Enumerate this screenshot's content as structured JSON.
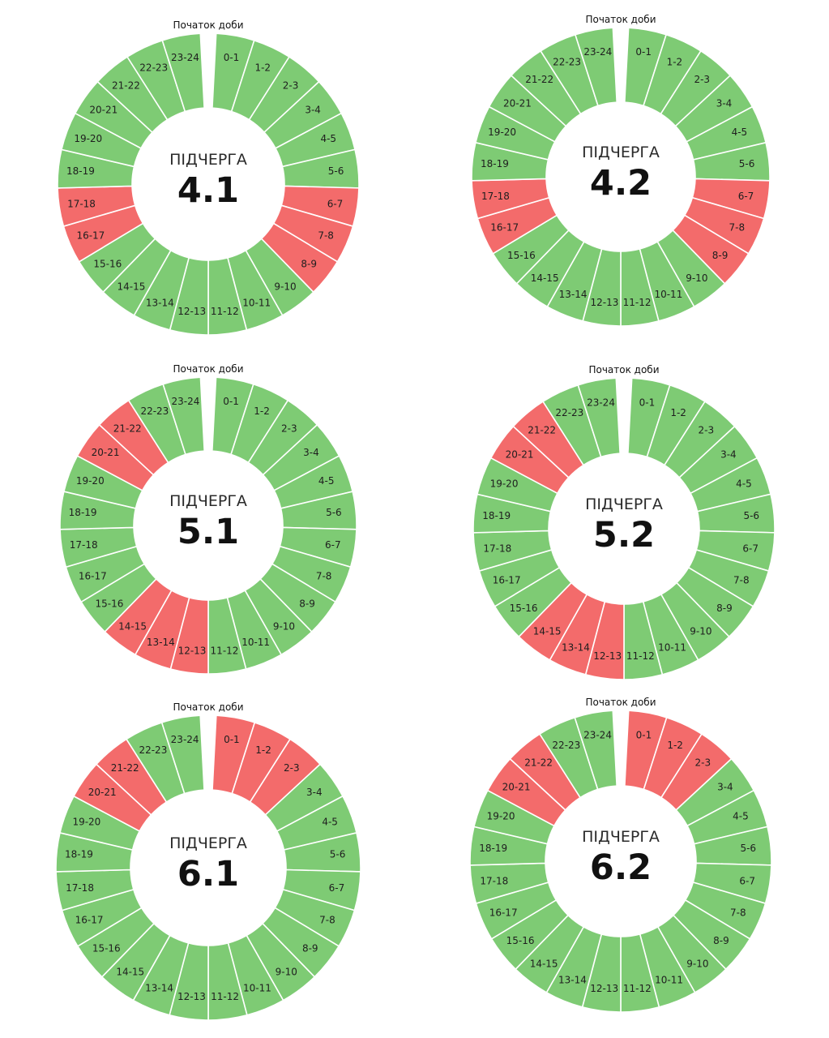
{
  "colors": {
    "on": "#7ecb74",
    "off": "#f36b6b",
    "separator": "#ffffff",
    "background": "#ffffff"
  },
  "chart_data": [
    {
      "type": "pie",
      "subtitle": "Початок доби",
      "title_prefix": "ПІДЧЕРГА",
      "title_number": "4.1",
      "slots": [
        "0-1",
        "1-2",
        "2-3",
        "3-4",
        "4-5",
        "5-6",
        "6-7",
        "7-8",
        "8-9",
        "9-10",
        "10-11",
        "11-12",
        "12-13",
        "13-14",
        "14-15",
        "15-16",
        "16-17",
        "17-18",
        "18-19",
        "19-20",
        "20-21",
        "21-22",
        "22-23",
        "23-24"
      ],
      "off": [
        "6-7",
        "7-8",
        "8-9",
        "16-17",
        "17-18"
      ]
    },
    {
      "type": "pie",
      "subtitle": "Початок доби",
      "title_prefix": "ПІДЧЕРГА",
      "title_number": "4.2",
      "slots": [
        "0-1",
        "1-2",
        "2-3",
        "3-4",
        "4-5",
        "5-6",
        "6-7",
        "7-8",
        "8-9",
        "9-10",
        "10-11",
        "11-12",
        "12-13",
        "13-14",
        "14-15",
        "15-16",
        "16-17",
        "17-18",
        "18-19",
        "19-20",
        "20-21",
        "21-22",
        "22-23",
        "23-24"
      ],
      "off": [
        "6-7",
        "7-8",
        "8-9",
        "16-17",
        "17-18"
      ]
    },
    {
      "type": "pie",
      "subtitle": "Початок доби",
      "title_prefix": "ПІДЧЕРГА",
      "title_number": "5.1",
      "slots": [
        "0-1",
        "1-2",
        "2-3",
        "3-4",
        "4-5",
        "5-6",
        "6-7",
        "7-8",
        "8-9",
        "9-10",
        "10-11",
        "11-12",
        "12-13",
        "13-14",
        "14-15",
        "15-16",
        "16-17",
        "17-18",
        "18-19",
        "19-20",
        "20-21",
        "21-22",
        "22-23",
        "23-24"
      ],
      "off": [
        "12-13",
        "13-14",
        "14-15",
        "20-21",
        "21-22"
      ]
    },
    {
      "type": "pie",
      "subtitle": "Початок доби",
      "title_prefix": "ПІДЧЕРГА",
      "title_number": "5.2",
      "slots": [
        "0-1",
        "1-2",
        "2-3",
        "3-4",
        "4-5",
        "5-6",
        "6-7",
        "7-8",
        "8-9",
        "9-10",
        "10-11",
        "11-12",
        "12-13",
        "13-14",
        "14-15",
        "15-16",
        "16-17",
        "17-18",
        "18-19",
        "19-20",
        "20-21",
        "21-22",
        "22-23",
        "23-24"
      ],
      "off": [
        "12-13",
        "13-14",
        "14-15",
        "20-21",
        "21-22"
      ]
    },
    {
      "type": "pie",
      "subtitle": "Початок доби",
      "title_prefix": "ПІДЧЕРГА",
      "title_number": "6.1",
      "slots": [
        "0-1",
        "1-2",
        "2-3",
        "3-4",
        "4-5",
        "5-6",
        "6-7",
        "7-8",
        "8-9",
        "9-10",
        "10-11",
        "11-12",
        "12-13",
        "13-14",
        "14-15",
        "15-16",
        "16-17",
        "17-18",
        "18-19",
        "19-20",
        "20-21",
        "21-22",
        "22-23",
        "23-24"
      ],
      "off": [
        "0-1",
        "1-2",
        "2-3",
        "20-21",
        "21-22"
      ]
    },
    {
      "type": "pie",
      "subtitle": "Початок доби",
      "title_prefix": "ПІДЧЕРГА",
      "title_number": "6.2",
      "slots": [
        "0-1",
        "1-2",
        "2-3",
        "3-4",
        "4-5",
        "5-6",
        "6-7",
        "7-8",
        "8-9",
        "9-10",
        "10-11",
        "11-12",
        "12-13",
        "13-14",
        "14-15",
        "15-16",
        "16-17",
        "17-18",
        "18-19",
        "19-20",
        "20-21",
        "21-22",
        "22-23",
        "23-24"
      ],
      "off": [
        "0-1",
        "1-2",
        "2-3",
        "20-21",
        "21-22"
      ]
    }
  ]
}
